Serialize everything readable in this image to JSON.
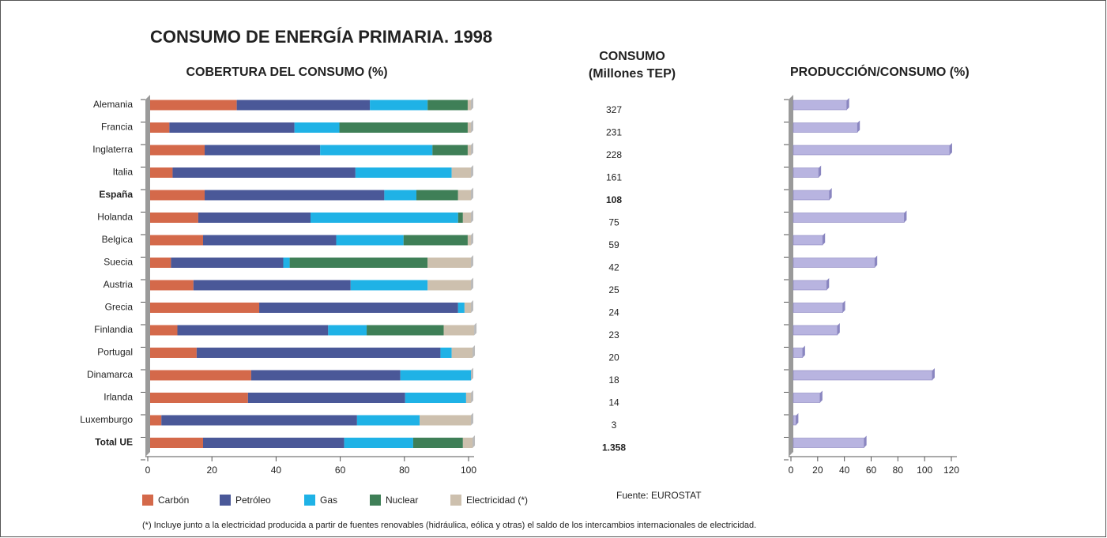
{
  "title": "CONSUMO DE ENERGÍA PRIMARIA. 1998",
  "source": "Fuente: EUROSTAT",
  "footnote": "(*) Incluye junto a la electricidad producida a partir de fuentes renovables (hidráulica, eólica y otras) el saldo de los intercambios internacionales de electricidad.",
  "chart_data": [
    {
      "type": "stacked_barh",
      "title": "COBERTURA DEL CONSUMO (%)",
      "categories": [
        "Alemania",
        "Francia",
        "Inglaterra",
        "Italia",
        "España",
        "Holanda",
        "Belgica",
        "Suecia",
        "Austria",
        "Grecia",
        "Finlandia",
        "Portugal",
        "Dinamarca",
        "Irlanda",
        "Luxemburgo",
        "Total UE"
      ],
      "bold_categories": [
        "España",
        "Total UE"
      ],
      "series": [
        {
          "name": "Carbón",
          "color": "#d4694a",
          "values": [
            27,
            6,
            17,
            7,
            17,
            15,
            16.5,
            6.5,
            13.5,
            34,
            8.5,
            14.5,
            31.5,
            30.5,
            3.5,
            16.5
          ]
        },
        {
          "name": "Petróleo",
          "color": "#4a5898",
          "values": [
            41.5,
            39,
            36,
            57,
            56,
            35,
            41.5,
            35,
            49,
            62,
            47,
            76,
            46.5,
            49,
            61,
            44
          ]
        },
        {
          "name": "Gas",
          "color": "#1fb2e6",
          "values": [
            18,
            14,
            35,
            30,
            10,
            46,
            21,
            2,
            24,
            2,
            12,
            3.5,
            22,
            19,
            19.5,
            21.5
          ]
        },
        {
          "name": "Nuclear",
          "color": "#3f7f57",
          "values": [
            12.5,
            40,
            11,
            0,
            13,
            1.5,
            20,
            43,
            0,
            0,
            24,
            0,
            0,
            0,
            0,
            15.5
          ]
        },
        {
          "name": "Electricidad (*)",
          "color": "#cdc0ae",
          "values": [
            1,
            1,
            1,
            6,
            4,
            2.5,
            1,
            13.5,
            13.5,
            2,
            9.5,
            6.5,
            0,
            1.5,
            16,
            3
          ]
        }
      ],
      "xlim": [
        0,
        100
      ],
      "xticks": [
        0,
        20,
        40,
        60,
        80,
        100
      ]
    },
    {
      "type": "column_table",
      "title_lines": [
        "CONSUMO",
        "(Millones TEP)"
      ],
      "values": [
        327,
        231,
        228,
        161,
        108,
        75,
        59,
        42,
        25,
        24,
        23,
        20,
        18,
        14,
        3,
        1358
      ],
      "value_labels": [
        "327",
        "231",
        "228",
        "161",
        "108",
        "75",
        "59",
        "42",
        "25",
        "24",
        "23",
        "20",
        "18",
        "14",
        "3",
        "1.358"
      ]
    },
    {
      "type": "barh3d",
      "title": "PRODUCCIÓN/CONSUMO (%)",
      "color": "#b8b4e0",
      "values": [
        40,
        48,
        117,
        19,
        27,
        83,
        22,
        61,
        25,
        37,
        33,
        7,
        104,
        20,
        2,
        53
      ],
      "xlim": [
        0,
        120
      ],
      "xticks": [
        0,
        20,
        40,
        60,
        80,
        100,
        120
      ]
    }
  ]
}
